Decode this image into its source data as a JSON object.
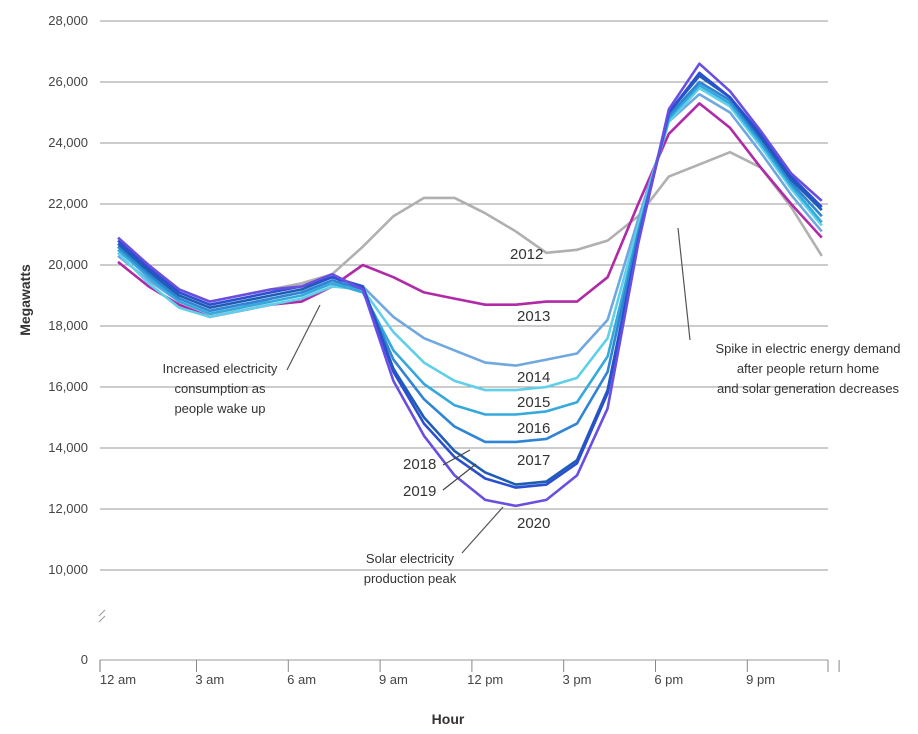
{
  "chart_data": {
    "type": "line",
    "title": "",
    "xlabel": "Hour",
    "ylabel": "Megawatts",
    "x": [
      0,
      1,
      2,
      3,
      4,
      5,
      6,
      7,
      8,
      9,
      10,
      11,
      12,
      13,
      14,
      15,
      16,
      17,
      18,
      19,
      20,
      21,
      22,
      23
    ],
    "x_ticks": [
      {
        "value": 0,
        "label": "12 am"
      },
      {
        "value": 3,
        "label": "3 am"
      },
      {
        "value": 6,
        "label": "6 am"
      },
      {
        "value": 9,
        "label": "9 am"
      },
      {
        "value": 12,
        "label": "12 pm"
      },
      {
        "value": 15,
        "label": "3 pm"
      },
      {
        "value": 18,
        "label": "6 pm"
      },
      {
        "value": 21,
        "label": "9 pm"
      }
    ],
    "y_ticks": [
      {
        "value": 0,
        "label": "0"
      },
      {
        "value": 10000,
        "label": "10,000"
      },
      {
        "value": 12000,
        "label": "12,000"
      },
      {
        "value": 14000,
        "label": "14,000"
      },
      {
        "value": 16000,
        "label": "16,000"
      },
      {
        "value": 18000,
        "label": "18,000"
      },
      {
        "value": 20000,
        "label": "20,000"
      },
      {
        "value": 22000,
        "label": "22,000"
      },
      {
        "value": 24000,
        "label": "24,000"
      },
      {
        "value": 26000,
        "label": "26,000"
      },
      {
        "value": 28000,
        "label": "28,000"
      }
    ],
    "ylim": [
      0,
      28000
    ],
    "y_axis_break": true,
    "grid": true,
    "series": [
      {
        "name": "2012",
        "color": "#b0b0b0",
        "values": [
          20600,
          19800,
          19200,
          18800,
          19000,
          19200,
          19400,
          19700,
          20600,
          21600,
          22200,
          22200,
          21700,
          21100,
          20400,
          20500,
          20800,
          21600,
          22900,
          23300,
          23700,
          23200,
          21900,
          20300
        ]
      },
      {
        "name": "2013",
        "color": "#b02aa8",
        "values": [
          20100,
          19300,
          18700,
          18300,
          18500,
          18700,
          18800,
          19300,
          20000,
          19600,
          19100,
          18900,
          18700,
          18700,
          18800,
          18800,
          19600,
          22000,
          24300,
          25300,
          24500,
          23200,
          22000,
          20900
        ]
      },
      {
        "name": "2014",
        "color": "#6fa8e0",
        "values": [
          20300,
          19500,
          18800,
          18400,
          18600,
          18900,
          19100,
          19400,
          19300,
          18300,
          17600,
          17200,
          16800,
          16700,
          16900,
          17100,
          18200,
          21500,
          24700,
          25600,
          25000,
          23700,
          22300,
          21100
        ]
      },
      {
        "name": "2015",
        "color": "#5fd0e8",
        "values": [
          20400,
          19400,
          18600,
          18300,
          18500,
          18700,
          18900,
          19300,
          19200,
          17800,
          16800,
          16200,
          15900,
          15900,
          16000,
          16300,
          17600,
          21300,
          24700,
          25800,
          25200,
          23900,
          22500,
          21300
        ]
      },
      {
        "name": "2016",
        "color": "#35a9dc",
        "values": [
          20500,
          19600,
          18800,
          18400,
          18600,
          18800,
          19000,
          19400,
          19100,
          17200,
          16100,
          15400,
          15100,
          15100,
          15200,
          15500,
          17000,
          21100,
          24800,
          25900,
          25300,
          24000,
          22600,
          21400
        ]
      },
      {
        "name": "2017",
        "color": "#2f84d4",
        "values": [
          20600,
          19700,
          18900,
          18500,
          18700,
          18900,
          19100,
          19500,
          19200,
          16900,
          15600,
          14700,
          14200,
          14200,
          14300,
          14800,
          16500,
          21000,
          24900,
          26000,
          25400,
          24100,
          22700,
          21600
        ]
      },
      {
        "name": "2018",
        "color": "#1f5cb4",
        "values": [
          20700,
          19800,
          19000,
          18600,
          18800,
          19000,
          19200,
          19600,
          19300,
          16600,
          15000,
          13900,
          13200,
          12800,
          12900,
          13600,
          15900,
          20800,
          25000,
          26200,
          25500,
          24200,
          22800,
          21800
        ]
      },
      {
        "name": "2019",
        "color": "#2a4fd0",
        "values": [
          20800,
          19900,
          19100,
          18700,
          18900,
          19100,
          19300,
          19600,
          19300,
          16500,
          14800,
          13700,
          13000,
          12700,
          12800,
          13500,
          15800,
          20800,
          25000,
          26300,
          25500,
          24300,
          22900,
          21900
        ]
      },
      {
        "name": "2020",
        "color": "#6a4ee0",
        "values": [
          20900,
          20000,
          19200,
          18800,
          19000,
          19200,
          19300,
          19700,
          19200,
          16200,
          14400,
          13100,
          12300,
          12100,
          12300,
          13100,
          15300,
          20700,
          25100,
          26600,
          25700,
          24400,
          23000,
          22100
        ]
      }
    ],
    "annotations": [
      {
        "id": "wake",
        "lines": [
          "Increased electricity",
          "consumption as",
          "people wake up"
        ]
      },
      {
        "id": "peak",
        "lines": [
          "Solar electricity",
          "production peak"
        ]
      },
      {
        "id": "spike",
        "lines": [
          "Spike in electric energy demand",
          "after people return home",
          "and solar generation decreases"
        ]
      }
    ]
  }
}
